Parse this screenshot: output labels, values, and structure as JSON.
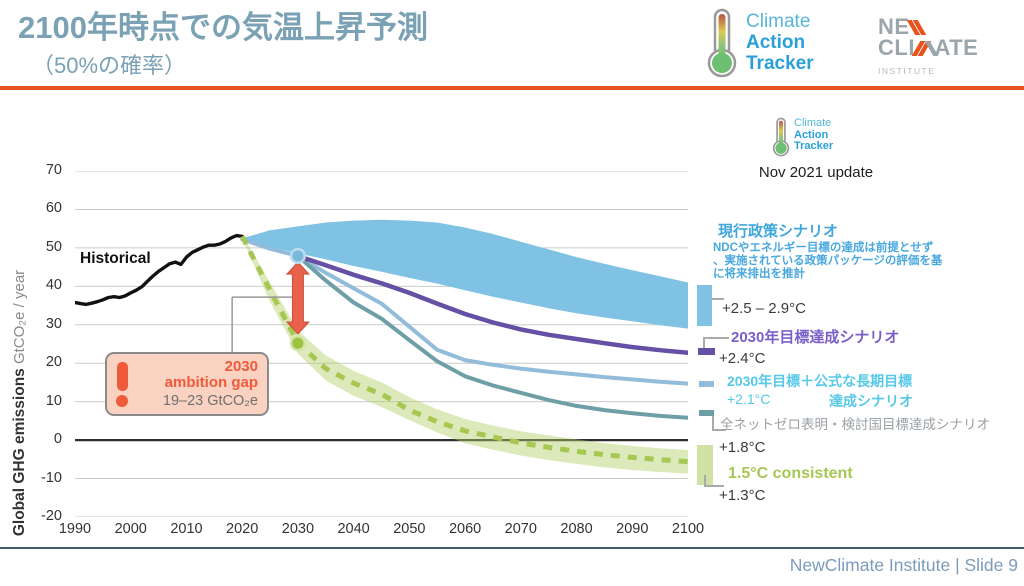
{
  "header": {
    "title": "2100年時点での気温上昇予測",
    "subtitle": "（50%の確率）",
    "cat_logo": {
      "l1": "Climate",
      "l2": "Action",
      "l3": "Tracker"
    },
    "nc_logo": {
      "p1": "NE",
      "p2": "CLI",
      "p3": "ATE",
      "sub": "INSTITUTE"
    }
  },
  "chart_header": {
    "update_label": "Nov 2021 update"
  },
  "annotation_box": {
    "line1": "2030",
    "line2": "ambition gap",
    "line3": "19–23  GtCO₂e"
  },
  "legend": {
    "items": [
      {
        "title": "現行政策シナリオ",
        "desc1": "NDCやエネルギー目標の達成は前提とせず",
        "desc2": "、実施されている政策パッケージの評価を基",
        "desc3": "に将来排出を推計",
        "temp": "+2.5 – 2.9°C",
        "color": "#3fa7dc",
        "swatch": "#7fc2e4"
      },
      {
        "title": "2030年目標達成シナリオ",
        "temp": "+2.4°C",
        "color": "#7a5fc8",
        "swatch": "#6650a5"
      },
      {
        "title": "2030年目標＋公式な長期目標",
        "title2": "達成シナリオ",
        "temp": "+2.1°C",
        "color": "#56c8e8",
        "swatch": "#92bcd9"
      },
      {
        "title": "全ネットゼロ表明・検討国目標達成シナリオ",
        "temp": "+1.8°C",
        "color": "#9ba1a6",
        "swatch": "#6f9fa6"
      },
      {
        "title": "1.5°C consistent",
        "temp": "+1.3°C",
        "color": "#a6c853",
        "swatch": "#cfe2a4"
      }
    ]
  },
  "footer": {
    "text": "NewClimate Institute | Slide 9"
  },
  "chart_data": {
    "type": "line",
    "ylabel_bold": "Global GHG emissions",
    "ylabel_unit": " GtCO₂e / year",
    "historical_label": "Historical",
    "xlim": [
      1990,
      2100
    ],
    "ylim": [
      -20,
      70
    ],
    "yticks": [
      70,
      60,
      50,
      40,
      30,
      20,
      10,
      0,
      -10,
      -20
    ],
    "xticks": [
      1990,
      2000,
      2010,
      2020,
      2030,
      2040,
      2050,
      2060,
      2070,
      2080,
      2090,
      2100
    ],
    "grid": "horizontal only",
    "legend_position": "right",
    "series": [
      {
        "name": "現行政策シナリオ (current policies)",
        "type": "band",
        "color": "#7fc2e4",
        "opacity": 1,
        "temp_2100": "+2.5 – 2.9°C",
        "x": [
          2020,
          2025,
          2030,
          2035,
          2040,
          2045,
          2050,
          2055,
          2060,
          2065,
          2070,
          2075,
          2080,
          2085,
          2090,
          2095,
          2100
        ],
        "upper": [
          52.5,
          54.6,
          55.6,
          56.6,
          57.1,
          57.3,
          57.1,
          56.6,
          55.3,
          53.6,
          51.6,
          49.6,
          47.6,
          45.9,
          44.2,
          42.6,
          41.0
        ],
        "lower": [
          51.8,
          50.2,
          48.6,
          47.0,
          45.3,
          43.8,
          42.2,
          40.7,
          39.0,
          37.3,
          35.8,
          34.3,
          33.0,
          31.9,
          30.9,
          29.9,
          29.0
        ]
      },
      {
        "name": "1.5°C consistent range",
        "type": "band",
        "color": "#b2cf66",
        "opacity": 0.45,
        "x": [
          2020,
          2025,
          2030,
          2035,
          2040,
          2045,
          2050,
          2055,
          2060,
          2065,
          2070,
          2075,
          2080,
          2085,
          2090,
          2095,
          2100
        ],
        "upper": [
          53.5,
          41.0,
          28.5,
          22.0,
          18.0,
          15.0,
          11.2,
          8.0,
          5.5,
          3.8,
          2.3,
          1.2,
          0.2,
          -0.8,
          -1.5,
          -2.1,
          -2.6
        ],
        "lower": [
          52.5,
          36.0,
          22.5,
          15.5,
          11.5,
          8.6,
          5.2,
          2.0,
          -0.8,
          -2.5,
          -4.0,
          -5.2,
          -6.2,
          -7.1,
          -7.8,
          -8.3,
          -8.7
        ]
      },
      {
        "name": "Historical",
        "type": "line",
        "color": "#111111",
        "width": 3.4,
        "x": [
          1990,
          1991,
          1992,
          1993,
          1994,
          1995,
          1996,
          1997,
          1998,
          1999,
          2000,
          2001,
          2002,
          2003,
          2004,
          2005,
          2006,
          2007,
          2008,
          2009,
          2010,
          2011,
          2012,
          2013,
          2014,
          2015,
          2016,
          2017,
          2018,
          2019,
          2020
        ],
        "y": [
          35.8,
          35.5,
          35.3,
          35.6,
          36.0,
          36.5,
          37.1,
          37.3,
          37.1,
          37.5,
          38.3,
          39.0,
          39.9,
          41.3,
          42.7,
          43.9,
          44.9,
          45.9,
          46.3,
          45.7,
          47.6,
          48.8,
          49.5,
          50.2,
          50.7,
          50.7,
          51.0,
          51.7,
          52.6,
          53.2,
          53.0
        ]
      },
      {
        "name": "2030年目標＋公式な長期目標 達成シナリオ",
        "type": "line",
        "color": "#92bcd9",
        "width": 4,
        "temp_2100": "+2.1°C",
        "x": [
          2020,
          2025,
          2030,
          2035,
          2040,
          2045,
          2050,
          2055,
          2060,
          2065,
          2070,
          2075,
          2080,
          2085,
          2090,
          2095,
          2100
        ],
        "y": [
          52.2,
          49.8,
          47.9,
          43.5,
          39.5,
          35.5,
          29.5,
          23.5,
          20.8,
          19.6,
          18.6,
          17.8,
          17.1,
          16.4,
          15.8,
          15.2,
          14.7
        ]
      },
      {
        "name": "全ネットゼロ表明・検討国目標達成シナリオ",
        "type": "line",
        "color": "#6f9fa6",
        "width": 4,
        "temp_2100": "+1.8°C",
        "x": [
          2030,
          2035,
          2040,
          2045,
          2050,
          2055,
          2060,
          2065,
          2070,
          2075,
          2080,
          2085,
          2090,
          2095,
          2100
        ],
        "y": [
          47.9,
          41.5,
          35.8,
          31.6,
          26.0,
          20.5,
          16.6,
          14.2,
          12.3,
          10.4,
          8.9,
          7.8,
          7.0,
          6.3,
          5.8
        ]
      },
      {
        "name": "2030年目標達成シナリオ",
        "type": "line",
        "color": "#6650a5",
        "width": 4.5,
        "temp_2100": "+2.4°C",
        "x": [
          2030,
          2035,
          2040,
          2045,
          2050,
          2055,
          2060,
          2065,
          2070,
          2075,
          2080,
          2085,
          2090,
          2095,
          2100
        ],
        "y": [
          47.9,
          45.5,
          43.0,
          40.8,
          38.3,
          35.5,
          32.8,
          30.6,
          28.8,
          27.4,
          26.3,
          25.2,
          24.2,
          23.4,
          22.7
        ]
      },
      {
        "name": "1.5°C consistent",
        "type": "line",
        "color": "#a6c853",
        "width": 5,
        "dash": "9 8",
        "temp_2100": "+1.3°C",
        "x": [
          2020,
          2025,
          2030,
          2035,
          2040,
          2045,
          2050,
          2055,
          2060,
          2065,
          2070,
          2075,
          2080,
          2085,
          2090,
          2095,
          2100
        ],
        "y": [
          53.0,
          39.0,
          25.3,
          18.6,
          14.8,
          12.0,
          7.8,
          4.8,
          2.4,
          0.8,
          -0.7,
          -1.9,
          -2.9,
          -3.8,
          -4.5,
          -5.1,
          -5.6
        ]
      }
    ],
    "gap_connector": {
      "x_year": 2018.2,
      "y_from": 22.9,
      "y_to": 37.2,
      "x_to_year": 2029.3,
      "color": "#9a9a9a"
    },
    "gap_arrow": {
      "year": 2030,
      "from": 46.3,
      "to": 27.6,
      "value_label": "19–23 GtCO₂e",
      "color": "#e8614a"
    },
    "dots": [
      {
        "year": 2030,
        "value": 47.9,
        "fill": "#7ab8dd",
        "stroke": "#bcdcf0"
      },
      {
        "year": 2030,
        "value": 25.2,
        "fill": "#9dc23f",
        "stroke": "#d2e5a4"
      }
    ]
  }
}
